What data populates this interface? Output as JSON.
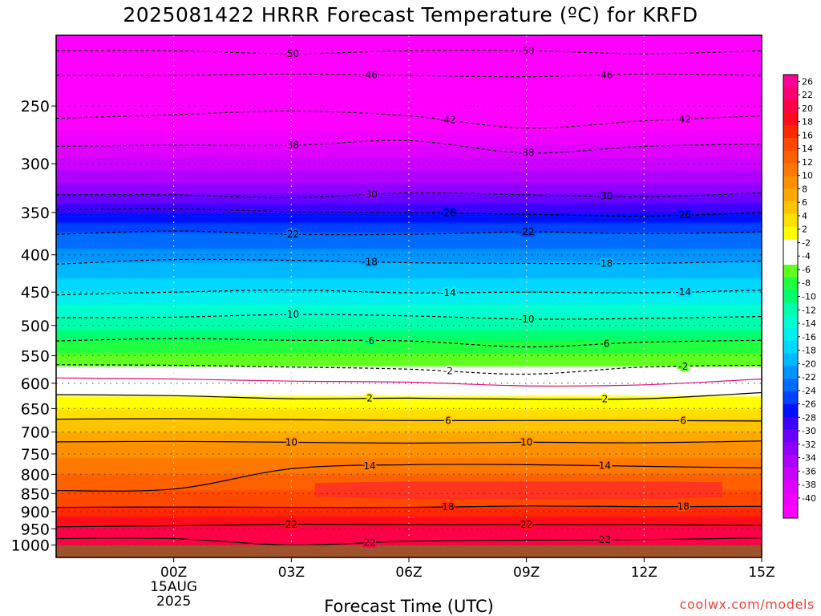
{
  "title": "2025081422 HRRR Forecast Temperature (ºC) for KRFD",
  "credit": "coolwx.com/models",
  "chart_data": {
    "type": "heatmap",
    "title": "2025081422 HRRR Forecast Temperature (ºC) for KRFD",
    "xlabel": "Forecast Time (UTC)",
    "ylabel": "",
    "y_scale": "log-pressure (hPa), inverted",
    "ylim": [
      1040,
      200
    ],
    "xlim_hours_from_00Z": [
      -3,
      15
    ],
    "x_ticks": [
      {
        "hour": 0,
        "label": "00Z",
        "sub": [
          "15AUG",
          "2025"
        ]
      },
      {
        "hour": 3,
        "label": "03Z",
        "sub": []
      },
      {
        "hour": 6,
        "label": "06Z",
        "sub": []
      },
      {
        "hour": 9,
        "label": "09Z",
        "sub": []
      },
      {
        "hour": 12,
        "label": "12Z",
        "sub": []
      },
      {
        "hour": 15,
        "label": "15Z",
        "sub": []
      }
    ],
    "y_ticks": [
      250,
      300,
      350,
      400,
      450,
      500,
      550,
      600,
      650,
      700,
      750,
      800,
      850,
      900,
      950,
      1000
    ],
    "grid": true,
    "legend": "colorbar-right",
    "ground_color": "#a0522d",
    "ground_pressure": 1000,
    "colorbar": {
      "levels": [
        -42,
        -40,
        -38,
        -36,
        -34,
        -32,
        -30,
        -28,
        -26,
        -24,
        -22,
        -20,
        -18,
        -16,
        -14,
        -12,
        -10,
        -8,
        -6,
        -4,
        -2,
        0,
        2,
        4,
        6,
        8,
        10,
        12,
        14,
        16,
        18,
        20,
        22,
        24,
        26,
        28
      ],
      "colors": [
        "#ff00ff",
        "#ef00ff",
        "#df00ff",
        "#cc00ff",
        "#b000ff",
        "#9000ff",
        "#6a00ff",
        "#3d00ff",
        "#0010ff",
        "#0040ff",
        "#006cff",
        "#0094ff",
        "#00b8ff",
        "#00d8ff",
        "#00f0f0",
        "#00ffd0",
        "#00ffaa",
        "#00ff70",
        "#20ff40",
        "#60ff20",
        "#ffffff",
        "#ffffff",
        "#ffff00",
        "#ffe000",
        "#ffc400",
        "#ffa800",
        "#ff9000",
        "#ff7800",
        "#ff6000",
        "#ff4800",
        "#ff2800",
        "#ff0c1c",
        "#ff0048",
        "#ff0070",
        "#ff0098"
      ],
      "labels": [
        26,
        22,
        20,
        18,
        16,
        14,
        12,
        10,
        8,
        6,
        4,
        2,
        -2,
        -4,
        -6,
        -8,
        -10,
        -12,
        -14,
        -16,
        -18,
        -20,
        -22,
        -24,
        -26,
        -28,
        -30,
        -32,
        -34,
        -36,
        -38,
        -40
      ]
    },
    "series": [
      {
        "name": "-50",
        "level": -50,
        "style": "dashed",
        "x": [
          -3,
          0,
          3,
          6,
          9,
          12,
          15
        ],
        "y": [
          210,
          210,
          212,
          210,
          210,
          212,
          210
        ]
      },
      {
        "name": "-46",
        "level": -46,
        "style": "dashed",
        "x": [
          -3,
          0,
          3,
          6,
          9,
          12,
          15
        ],
        "y": [
          227,
          227,
          226,
          227,
          228,
          226,
          227
        ]
      },
      {
        "name": "-42",
        "level": -42,
        "style": "dashed",
        "x": [
          -3,
          0,
          3,
          6,
          9,
          12,
          15
        ],
        "y": [
          260,
          257,
          254,
          258,
          268,
          262,
          258
        ]
      },
      {
        "name": "-38",
        "level": -38,
        "style": "dashed",
        "x": [
          -3,
          0,
          3,
          6,
          9,
          12,
          15
        ],
        "y": [
          284,
          283,
          283,
          279,
          290,
          284,
          282
        ]
      },
      {
        "name": "-30",
        "level": -30,
        "style": "dashed",
        "x": [
          -3,
          0,
          3,
          6,
          9,
          12,
          15
        ],
        "y": [
          331,
          331,
          334,
          329,
          331,
          333,
          329
        ]
      },
      {
        "name": "-26",
        "level": -26,
        "style": "dashed",
        "x": [
          -3,
          0,
          3,
          6,
          9,
          12,
          15
        ],
        "y": [
          347,
          346,
          349,
          350,
          352,
          354,
          350
        ]
      },
      {
        "name": "-22",
        "level": -22,
        "style": "dashed",
        "x": [
          -3,
          0,
          3,
          6,
          9,
          12,
          15
        ],
        "y": [
          375,
          371,
          375,
          375,
          372,
          374,
          372
        ]
      },
      {
        "name": "-18",
        "level": -18,
        "style": "dashed",
        "x": [
          -3,
          0,
          3,
          6,
          9,
          12,
          15
        ],
        "y": [
          412,
          406,
          407,
          410,
          411,
          411,
          408
        ]
      },
      {
        "name": "-14",
        "level": -14,
        "style": "dashed",
        "x": [
          -3,
          0,
          3,
          6,
          9,
          12,
          15
        ],
        "y": [
          454,
          450,
          447,
          451,
          450,
          451,
          447
        ]
      },
      {
        "name": "-10",
        "level": -10,
        "style": "dashed",
        "x": [
          -3,
          0,
          3,
          6,
          9,
          12,
          15
        ],
        "y": [
          488,
          487,
          483,
          485,
          490,
          489,
          486
        ]
      },
      {
        "name": "-6",
        "level": -6,
        "style": "dashed",
        "x": [
          -3,
          0,
          3,
          6,
          9,
          12,
          15
        ],
        "y": [
          525,
          521,
          524,
          525,
          535,
          527,
          524
        ]
      },
      {
        "name": "-2",
        "level": -2,
        "style": "dashed",
        "x": [
          -3,
          0,
          3,
          6,
          9,
          12,
          15
        ],
        "y": [
          566,
          567,
          570,
          574,
          583,
          570,
          567
        ]
      },
      {
        "name": "0",
        "level": 0,
        "style": "magenta",
        "x": [
          -3,
          0,
          3,
          6,
          9,
          12,
          15
        ],
        "y": [
          590,
          592,
          596,
          598,
          605,
          603,
          592
        ]
      },
      {
        "name": "2",
        "level": 2,
        "style": "solid",
        "x": [
          -3,
          0,
          3,
          6,
          9,
          12,
          15
        ],
        "y": [
          622,
          624,
          630,
          629,
          631,
          630,
          618
        ]
      },
      {
        "name": "6",
        "level": 6,
        "style": "solid",
        "x": [
          -3,
          0,
          3,
          6,
          9,
          12,
          15
        ],
        "y": [
          672,
          671,
          673,
          675,
          675,
          675,
          676
        ]
      },
      {
        "name": "10",
        "level": 10,
        "style": "solid",
        "x": [
          -3,
          0,
          3,
          6,
          9,
          12,
          15
        ],
        "y": [
          722,
          721,
          723,
          725,
          723,
          724,
          720
        ]
      },
      {
        "name": "14",
        "level": 14,
        "style": "solid",
        "x": [
          -3,
          0,
          3,
          6,
          9,
          12,
          15
        ],
        "y": [
          842,
          838,
          786,
          776,
          776,
          780,
          784
        ]
      },
      {
        "name": "18",
        "level": 18,
        "style": "solid",
        "x": [
          -3,
          0,
          3,
          6,
          9,
          12,
          15
        ],
        "y": [
          888,
          887,
          888,
          888,
          884,
          886,
          885
        ]
      },
      {
        "name": "22",
        "level": 22,
        "style": "solid",
        "x": [
          -3,
          0,
          3,
          6,
          9,
          12,
          15
        ],
        "y": [
          944,
          941,
          937,
          938,
          938,
          938,
          940
        ]
      },
      {
        "name": "22",
        "level": 22,
        "style": "solid",
        "x": [
          -3,
          0,
          3,
          6,
          9,
          12,
          15
        ],
        "y": [
          980,
          980,
          1000,
          988,
          985,
          983,
          978
        ]
      }
    ]
  }
}
